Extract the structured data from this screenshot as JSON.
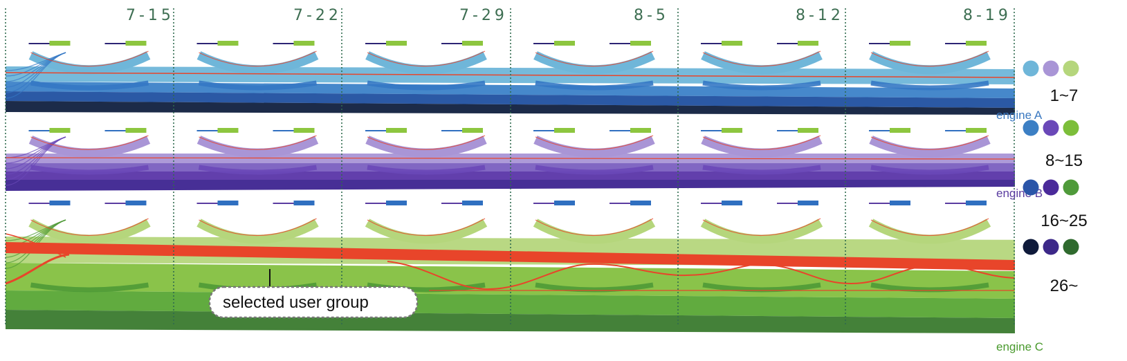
{
  "dates": [
    "7-15",
    "7-22",
    "7-29",
    "8-5",
    "8-12",
    "8-19"
  ],
  "engines": [
    {
      "label": "engine A",
      "label_color": "#3a78c0",
      "bands": [
        "#6fb6d9",
        "#3c82c8",
        "#2050a0",
        "#10203f"
      ],
      "arc_color": "#6fb6d9",
      "lower_arc_color": "#3478c4",
      "mini_colors": [
        "#2d2475",
        "#8dc63f"
      ]
    },
    {
      "label": "engine B",
      "label_color": "#5a3ca0",
      "bands": [
        "#a995d6",
        "#7a5fc0",
        "#5a35a8",
        "#3d2490"
      ],
      "arc_color": "#a995d6",
      "lower_arc_color": "#6a48b8",
      "mini_colors": [
        "#2f6fc0",
        "#8dc63f"
      ]
    },
    {
      "label": "engine C",
      "label_color": "#4a9a2e",
      "bands": [
        "#b5d67c",
        "#84c040",
        "#58a635",
        "#3a7a2e"
      ],
      "arc_color": "#b5d67c",
      "lower_arc_color": "#4e9a36",
      "mini_colors": [
        "#5a3ca0",
        "#2f6fc0"
      ]
    }
  ],
  "selected_color": "#e8452a",
  "callout": {
    "label": "selected user group"
  },
  "legend": [
    {
      "label": "1~7",
      "colors": [
        "#6fb6d9",
        "#a995d6",
        "#b5d67c"
      ]
    },
    {
      "label": "8~15",
      "colors": [
        "#3c7fc4",
        "#6a48b8",
        "#7cbe3a"
      ]
    },
    {
      "label": "16~25",
      "colors": [
        "#2a55a8",
        "#4a2a9a",
        "#4f9a3a"
      ]
    },
    {
      "label": "26~",
      "colors": [
        "#0f1a3a",
        "#3c2888",
        "#2f6a2e"
      ]
    }
  ]
}
